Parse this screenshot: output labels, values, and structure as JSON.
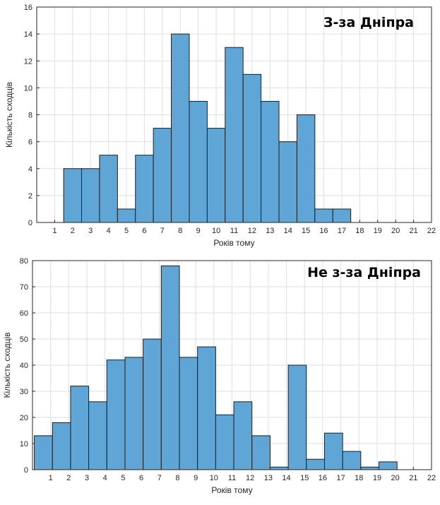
{
  "chart_data": [
    {
      "type": "bar",
      "title": "З-за Дніпра",
      "xlabel": "Років тому",
      "ylabel": "Кількість сходців",
      "ylim": [
        0,
        16
      ],
      "yticks": [
        0,
        2,
        4,
        6,
        8,
        10,
        12,
        14,
        16
      ],
      "xlim": [
        0,
        22
      ],
      "xticks": [
        1,
        2,
        3,
        4,
        5,
        6,
        7,
        8,
        9,
        10,
        11,
        12,
        13,
        14,
        15,
        16,
        17,
        18,
        19,
        20,
        21,
        22
      ],
      "bins": [
        {
          "start": 1.5,
          "end": 2.5,
          "value": 4
        },
        {
          "start": 2.5,
          "end": 3.5,
          "value": 4
        },
        {
          "start": 3.5,
          "end": 4.5,
          "value": 5
        },
        {
          "start": 4.5,
          "end": 5.5,
          "value": 1
        },
        {
          "start": 5.5,
          "end": 6.5,
          "value": 5
        },
        {
          "start": 6.5,
          "end": 7.5,
          "value": 7
        },
        {
          "start": 7.5,
          "end": 8.5,
          "value": 14
        },
        {
          "start": 8.5,
          "end": 9.5,
          "value": 9
        },
        {
          "start": 9.5,
          "end": 10.5,
          "value": 7
        },
        {
          "start": 10.5,
          "end": 11.5,
          "value": 13
        },
        {
          "start": 11.5,
          "end": 12.5,
          "value": 11
        },
        {
          "start": 12.5,
          "end": 13.5,
          "value": 9
        },
        {
          "start": 13.5,
          "end": 14.5,
          "value": 6
        },
        {
          "start": 14.5,
          "end": 15.5,
          "value": 8
        },
        {
          "start": 15.5,
          "end": 16.5,
          "value": 1
        },
        {
          "start": 16.5,
          "end": 17.5,
          "value": 1
        }
      ],
      "bar_color": "#5fa6d6",
      "grid": true,
      "legend": "none"
    },
    {
      "type": "bar",
      "title": "Не з-за Дніпра",
      "xlabel": "Років тому",
      "ylabel": "Кількість сходців",
      "ylim": [
        0,
        80
      ],
      "yticks": [
        0,
        10,
        20,
        30,
        40,
        50,
        60,
        70,
        80
      ],
      "xlim": [
        0,
        22
      ],
      "xticks": [
        1,
        2,
        3,
        4,
        5,
        6,
        7,
        8,
        9,
        10,
        11,
        12,
        13,
        14,
        15,
        16,
        17,
        18,
        19,
        20,
        21,
        22
      ],
      "bins": [
        {
          "start": 0.1,
          "end": 1.1,
          "value": 13
        },
        {
          "start": 1.1,
          "end": 2.1,
          "value": 18
        },
        {
          "start": 2.1,
          "end": 3.1,
          "value": 32
        },
        {
          "start": 3.1,
          "end": 4.1,
          "value": 26
        },
        {
          "start": 4.1,
          "end": 5.1,
          "value": 42
        },
        {
          "start": 5.1,
          "end": 6.1,
          "value": 43
        },
        {
          "start": 6.1,
          "end": 7.1,
          "value": 50
        },
        {
          "start": 7.1,
          "end": 8.1,
          "value": 78
        },
        {
          "start": 8.1,
          "end": 9.1,
          "value": 43
        },
        {
          "start": 9.1,
          "end": 10.1,
          "value": 47
        },
        {
          "start": 10.1,
          "end": 11.1,
          "value": 21
        },
        {
          "start": 11.1,
          "end": 12.1,
          "value": 26
        },
        {
          "start": 12.1,
          "end": 13.1,
          "value": 13
        },
        {
          "start": 13.1,
          "end": 14.1,
          "value": 1
        },
        {
          "start": 14.1,
          "end": 15.1,
          "value": 40
        },
        {
          "start": 15.1,
          "end": 16.1,
          "value": 4
        },
        {
          "start": 16.1,
          "end": 17.1,
          "value": 14
        },
        {
          "start": 17.1,
          "end": 18.1,
          "value": 7
        },
        {
          "start": 18.1,
          "end": 19.1,
          "value": 1
        },
        {
          "start": 19.1,
          "end": 20.1,
          "value": 3
        },
        {
          "start": 20.1,
          "end": 21.1,
          "value": 0
        },
        {
          "start": 21.1,
          "end": 22.1,
          "value": 0
        }
      ],
      "bar_color": "#5fa6d6",
      "grid": true,
      "legend": "none"
    }
  ]
}
